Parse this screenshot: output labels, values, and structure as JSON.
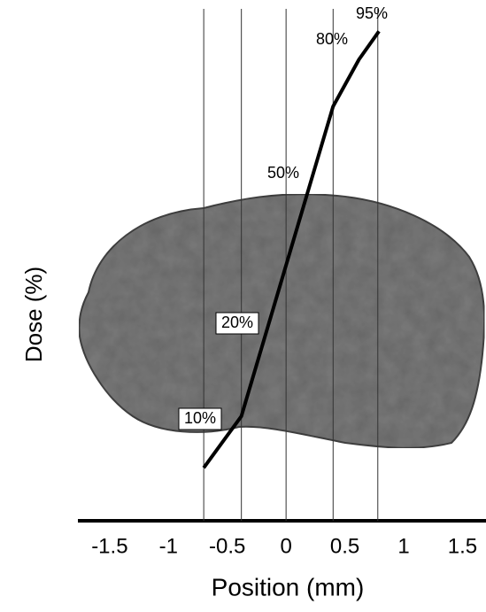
{
  "chart_data": {
    "type": "line",
    "x_label": "Position (mm)",
    "y_label": "Dose (%)",
    "xlim": [
      -1.77,
      1.7
    ],
    "xticks": [
      -1.5,
      -1,
      -0.5,
      0,
      0.5,
      1,
      1.5
    ],
    "ylim": [
      0,
      100
    ],
    "reference_lines": [
      -0.7,
      -0.38,
      0,
      0.4,
      0.78
    ],
    "series": [
      {
        "color": "#000000",
        "x": [
          -0.7,
          -0.38,
          0.4,
          0.62,
          0.79
        ],
        "values": [
          6,
          17,
          83,
          93,
          99
        ]
      }
    ],
    "annotations": [
      "10%",
      "20%",
      "50%",
      "80%",
      "95%"
    ]
  }
}
